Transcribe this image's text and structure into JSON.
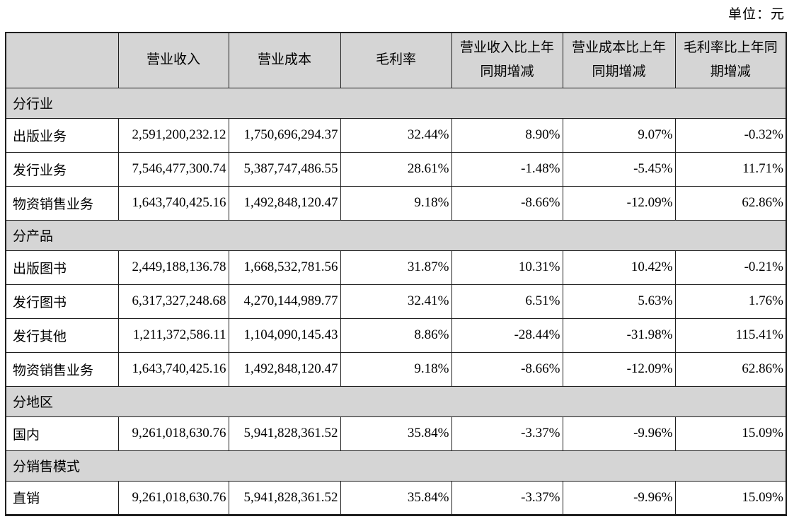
{
  "unit_label": "单位：元",
  "colors": {
    "shade_bg": "#d5d5d5",
    "border_color": "#1f1f1f",
    "text_color": "#000000",
    "page_bg": "#ffffff"
  },
  "table": {
    "headers": [
      "",
      "营业收入",
      "营业成本",
      "毛利率",
      "营业收入比上年\n同期增减",
      "营业成本比上年\n同期增减",
      "毛利率比上年同\n期增减"
    ],
    "sections": [
      {
        "title": "分行业",
        "rows": [
          {
            "label": "出版业务",
            "revenue": "2,591,200,232.12",
            "cost": "1,750,696,294.37",
            "margin": "32.44%",
            "revenue_change": "8.90%",
            "cost_change": "9.07%",
            "margin_change": "-0.32%"
          },
          {
            "label": "发行业务",
            "revenue": "7,546,477,300.74",
            "cost": "5,387,747,486.55",
            "margin": "28.61%",
            "revenue_change": "-1.48%",
            "cost_change": "-5.45%",
            "margin_change": "11.71%"
          },
          {
            "label": "物资销售业务",
            "revenue": "1,643,740,425.16",
            "cost": "1,492,848,120.47",
            "margin": "9.18%",
            "revenue_change": "-8.66%",
            "cost_change": "-12.09%",
            "margin_change": "62.86%"
          }
        ]
      },
      {
        "title": "分产品",
        "rows": [
          {
            "label": "出版图书",
            "revenue": "2,449,188,136.78",
            "cost": "1,668,532,781.56",
            "margin": "31.87%",
            "revenue_change": "10.31%",
            "cost_change": "10.42%",
            "margin_change": "-0.21%"
          },
          {
            "label": "发行图书",
            "revenue": "6,317,327,248.68",
            "cost": "4,270,144,989.77",
            "margin": "32.41%",
            "revenue_change": "6.51%",
            "cost_change": "5.63%",
            "margin_change": "1.76%"
          },
          {
            "label": "发行其他",
            "revenue": "1,211,372,586.11",
            "cost": "1,104,090,145.43",
            "margin": "8.86%",
            "revenue_change": "-28.44%",
            "cost_change": "-31.98%",
            "margin_change": "115.41%"
          },
          {
            "label": "物资销售业务",
            "revenue": "1,643,740,425.16",
            "cost": "1,492,848,120.47",
            "margin": "9.18%",
            "revenue_change": "-8.66%",
            "cost_change": "-12.09%",
            "margin_change": "62.86%"
          }
        ]
      },
      {
        "title": "分地区",
        "rows": [
          {
            "label": "国内",
            "revenue": "9,261,018,630.76",
            "cost": "5,941,828,361.52",
            "margin": "35.84%",
            "revenue_change": "-3.37%",
            "cost_change": "-9.96%",
            "margin_change": "15.09%"
          }
        ]
      },
      {
        "title": "分销售模式",
        "rows": [
          {
            "label": "直销",
            "revenue": "9,261,018,630.76",
            "cost": "5,941,828,361.52",
            "margin": "35.84%",
            "revenue_change": "-3.37%",
            "cost_change": "-9.96%",
            "margin_change": "15.09%"
          }
        ]
      }
    ]
  }
}
